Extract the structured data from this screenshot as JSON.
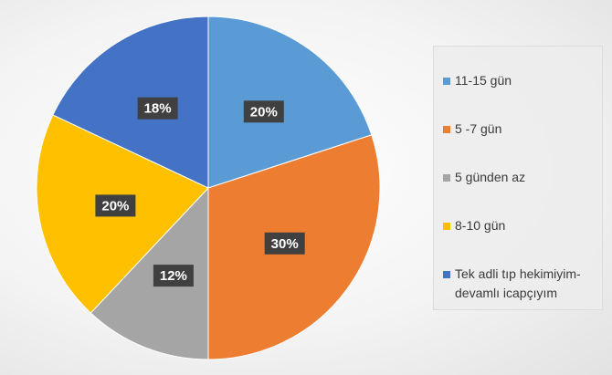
{
  "chart_data": {
    "type": "pie",
    "categories": [
      "11-15 gün",
      "5 -7 gün",
      "5 günden az",
      "8-10 gün",
      "Tek adli tıp hekimiyim- devamlı icapçıyım"
    ],
    "values": [
      20,
      30,
      12,
      20,
      18
    ],
    "labels": [
      "20%",
      "30%",
      "12%",
      "20%",
      "18%"
    ],
    "colors": [
      "#5b9bd5",
      "#ed7d31",
      "#a5a5a5",
      "#ffc000",
      "#4472c4"
    ],
    "start_angle_deg": 0,
    "direction": "clockwise",
    "legend_position": "right",
    "title": ""
  },
  "legend": {
    "items": [
      {
        "label": "11-15 gün",
        "color": "#5b9bd5"
      },
      {
        "label": "5 -7 gün",
        "color": "#ed7d31"
      },
      {
        "label": "5 günden az",
        "color": "#a5a5a5"
      },
      {
        "label": "8-10 gün",
        "color": "#ffc000"
      },
      {
        "label": "Tek adli tıp hekimiyim- devamlı icapçıyım",
        "color": "#4472c4"
      }
    ]
  }
}
